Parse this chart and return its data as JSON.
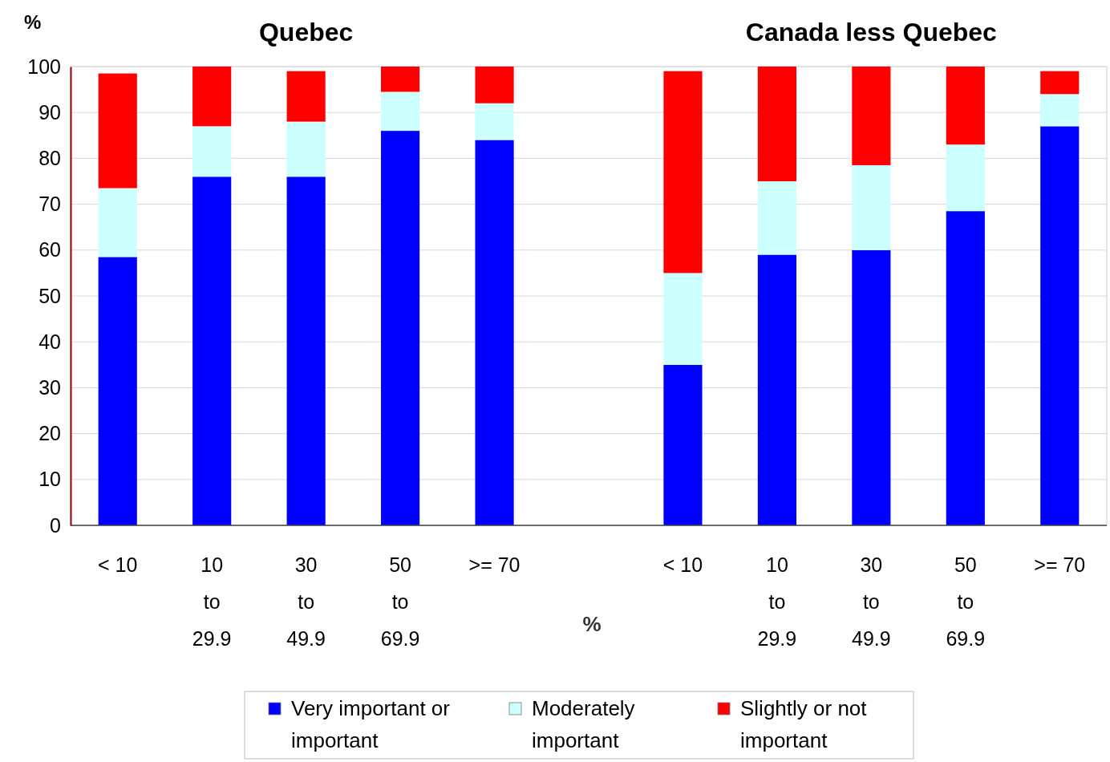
{
  "chart_data": {
    "type": "bar",
    "stacked": true,
    "ylabel": "%",
    "xlabel": "%",
    "annotations": [
      "Quebec",
      "Canada less Quebec"
    ],
    "categories": [
      "< 10",
      "10\nto\n29.9",
      "30\nto\n49.9",
      "50\nto\n69.9",
      ">= 70",
      null,
      "< 10",
      "10\nto\n29.9",
      "30\nto\n49.9",
      "50\nto\n69.9",
      ">= 70"
    ],
    "series": [
      {
        "name": "Very important or important",
        "color": "#0000ff",
        "values": [
          58.5,
          76,
          76,
          86,
          84,
          null,
          35,
          59,
          60,
          68.5,
          87
        ]
      },
      {
        "name": "Moderately important",
        "color": "#ccffff",
        "values": [
          15,
          11,
          12,
          8.5,
          8,
          null,
          20,
          16,
          18.5,
          14.5,
          7
        ]
      },
      {
        "name": "Slightly or not important",
        "color": "#ff0000",
        "values": [
          25,
          13,
          11,
          5.5,
          8,
          null,
          44,
          25,
          21.5,
          17,
          5
        ]
      }
    ],
    "ylim": [
      0,
      100
    ],
    "yticks": [
      0,
      10,
      20,
      30,
      40,
      50,
      60,
      70,
      80,
      90,
      100
    ],
    "grid": "y",
    "legend": "bottom"
  }
}
